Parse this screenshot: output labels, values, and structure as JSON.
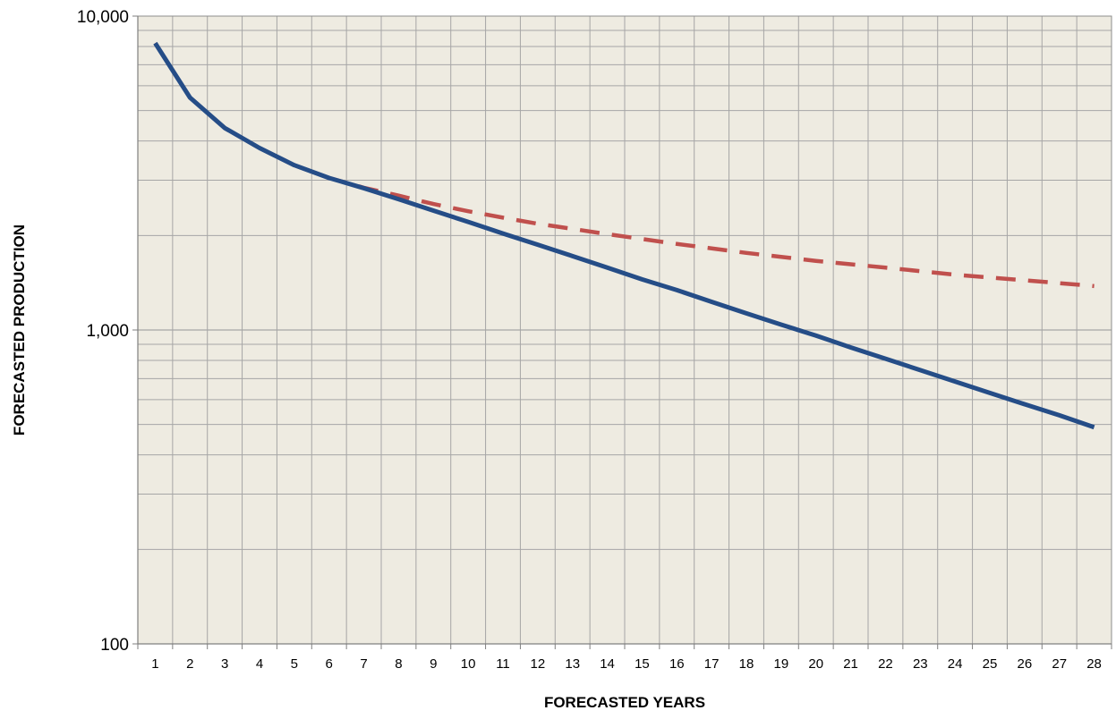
{
  "chart_data": {
    "type": "line",
    "title": "",
    "xlabel": "FORECASTED YEARS",
    "ylabel": "FORECASTED PRODUCTION",
    "yscale": "log",
    "ylim": [
      100,
      10000
    ],
    "yticks": [
      "100",
      "1,000",
      "10,000"
    ],
    "categories": [
      "1",
      "2",
      "3",
      "4",
      "5",
      "6",
      "7",
      "8",
      "9",
      "10",
      "11",
      "12",
      "13",
      "14",
      "15",
      "16",
      "17",
      "18",
      "19",
      "20",
      "21",
      "22",
      "23",
      "24",
      "25",
      "26",
      "27",
      "28"
    ],
    "grid": true,
    "legend": "none",
    "plot_background": "#EEEBE1",
    "grid_color": "#A6A6A6",
    "series": [
      {
        "style": "solid",
        "color": "#254D87",
        "values": [
          8200,
          5500,
          4400,
          3800,
          3350,
          3050,
          2830,
          2610,
          2400,
          2210,
          2030,
          1870,
          1720,
          1580,
          1450,
          1340,
          1230,
          1130,
          1040,
          960,
          880,
          810,
          745,
          685,
          630,
          580,
          535,
          490
        ]
      },
      {
        "style": "dashed",
        "color": "#C0504D",
        "values": [
          8200,
          5500,
          4400,
          3800,
          3350,
          3050,
          2840,
          2680,
          2520,
          2390,
          2280,
          2180,
          2100,
          2020,
          1950,
          1880,
          1820,
          1760,
          1710,
          1660,
          1620,
          1580,
          1540,
          1500,
          1470,
          1440,
          1410,
          1380
        ]
      }
    ]
  }
}
